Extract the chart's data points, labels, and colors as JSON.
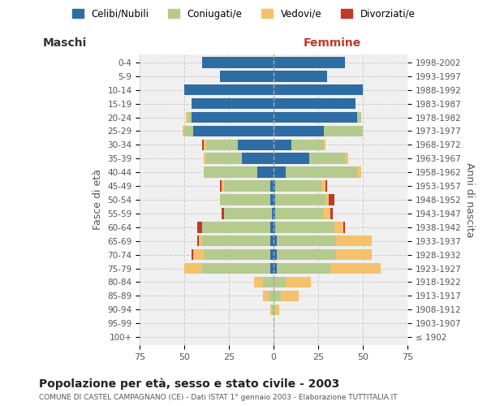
{
  "age_groups": [
    "100+",
    "95-99",
    "90-94",
    "85-89",
    "80-84",
    "75-79",
    "70-74",
    "65-69",
    "60-64",
    "55-59",
    "50-54",
    "45-49",
    "40-44",
    "35-39",
    "30-34",
    "25-29",
    "20-24",
    "15-19",
    "10-14",
    "5-9",
    "0-4"
  ],
  "birth_years": [
    "≤ 1902",
    "1903-1907",
    "1908-1912",
    "1913-1917",
    "1918-1922",
    "1923-1927",
    "1928-1932",
    "1933-1937",
    "1938-1942",
    "1943-1947",
    "1948-1952",
    "1953-1957",
    "1958-1962",
    "1963-1967",
    "1968-1972",
    "1973-1977",
    "1978-1982",
    "1983-1987",
    "1988-1992",
    "1993-1997",
    "1998-2002"
  ],
  "maschi": {
    "celibi": [
      0,
      0,
      0,
      0,
      0,
      2,
      2,
      2,
      2,
      1,
      2,
      2,
      9,
      18,
      20,
      45,
      46,
      46,
      50,
      30,
      40
    ],
    "coniugati": [
      0,
      0,
      1,
      3,
      6,
      38,
      37,
      38,
      38,
      27,
      28,
      26,
      30,
      20,
      18,
      5,
      2,
      0,
      0,
      0,
      0
    ],
    "vedovi": [
      0,
      0,
      1,
      3,
      5,
      10,
      6,
      2,
      0,
      0,
      0,
      1,
      0,
      1,
      1,
      1,
      1,
      0,
      0,
      0,
      0
    ],
    "divorziati": [
      0,
      0,
      0,
      0,
      0,
      0,
      1,
      1,
      3,
      1,
      0,
      1,
      0,
      0,
      1,
      0,
      0,
      0,
      0,
      0,
      0
    ]
  },
  "femmine": {
    "nubili": [
      0,
      0,
      0,
      0,
      0,
      2,
      2,
      2,
      1,
      1,
      1,
      1,
      7,
      20,
      10,
      28,
      47,
      46,
      50,
      30,
      40
    ],
    "coniugate": [
      0,
      0,
      1,
      4,
      7,
      30,
      33,
      33,
      33,
      27,
      28,
      26,
      40,
      20,
      18,
      22,
      2,
      0,
      0,
      0,
      0
    ],
    "vedove": [
      0,
      0,
      2,
      10,
      14,
      28,
      20,
      20,
      5,
      4,
      2,
      2,
      2,
      2,
      1,
      0,
      0,
      0,
      0,
      0,
      0
    ],
    "divorziate": [
      0,
      0,
      0,
      0,
      0,
      0,
      0,
      0,
      1,
      1,
      3,
      1,
      0,
      0,
      0,
      0,
      0,
      0,
      0,
      0,
      0
    ]
  },
  "colors": {
    "celibi": "#2E6DA4",
    "coniugati": "#B5CA8D",
    "vedovi": "#F5C26B",
    "divorziati": "#C0392B"
  },
  "title": "Popolazione per età, sesso e stato civile - 2003",
  "subtitle": "COMUNE DI CASTEL CAMPAGNANO (CE) - Dati ISTAT 1° gennaio 2003 - Elaborazione TUTTITALIA.IT",
  "xlabel_left": "Maschi",
  "xlabel_right": "Femmine",
  "ylabel_left": "Fasce di età",
  "ylabel_right": "Anni di nascita",
  "xlim": 75,
  "legend_labels": [
    "Celibi/Nubili",
    "Coniugati/e",
    "Vedovi/e",
    "Divorziati/e"
  ],
  "bg_color": "#f0f0f0",
  "grid_color": "#cccccc"
}
